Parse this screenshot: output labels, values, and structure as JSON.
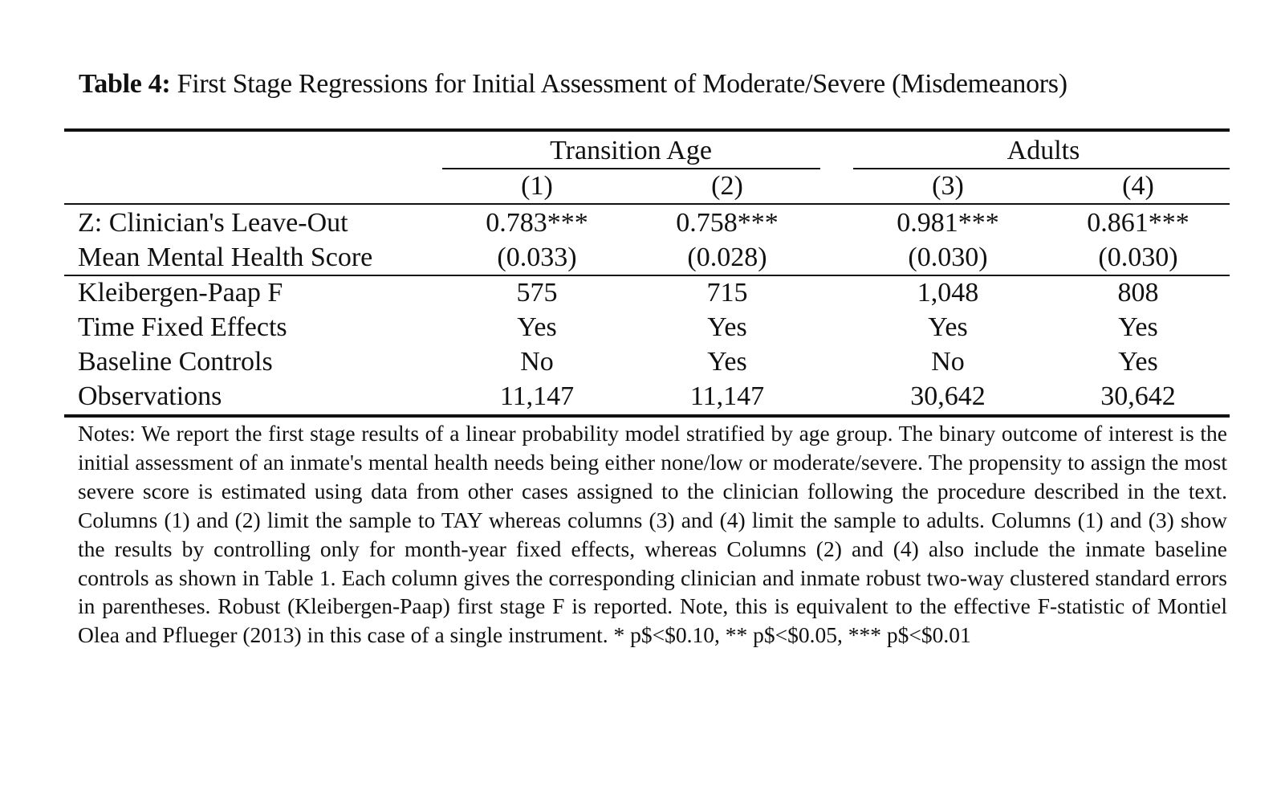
{
  "table": {
    "label": "Table 4:",
    "title": "First Stage Regressions for Initial Assessment of Moderate/Severe (Misdemeanors)",
    "groups": [
      {
        "label": "Transition Age"
      },
      {
        "label": "Adults"
      }
    ],
    "columns": [
      "(1)",
      "(2)",
      "(3)",
      "(4)"
    ],
    "rows": [
      {
        "label": "Z: Clinician's Leave-Out",
        "values": [
          "0.783***",
          "0.758***",
          "0.981***",
          "0.861***"
        ]
      },
      {
        "label": "Mean Mental Health Score",
        "values": [
          "(0.033)",
          "(0.028)",
          "(0.030)",
          "(0.030)"
        ]
      },
      {
        "label": "Kleibergen-Paap F",
        "values": [
          "575",
          "715",
          "1,048",
          "808"
        ]
      },
      {
        "label": "Time Fixed Effects",
        "values": [
          "Yes",
          "Yes",
          "Yes",
          "Yes"
        ]
      },
      {
        "label": "Baseline Controls",
        "values": [
          "No",
          "Yes",
          "No",
          "Yes"
        ]
      },
      {
        "label": "Observations",
        "values": [
          "11,147",
          "11,147",
          "30,642",
          "30,642"
        ]
      }
    ],
    "notes": "Notes: We report the first stage results of a linear probability model stratified by age group. The binary outcome of interest is the initial assessment of an inmate's mental health needs being either none/low or moderate/severe. The propensity to assign the most severe score is estimated using data from other cases assigned to the clinician following the procedure described in the text. Columns (1) and (2) limit the sample to TAY whereas columns (3) and (4) limit the sample to adults. Columns (1) and (3) show the results by controlling only for month-year fixed effects, whereas Columns (2) and (4) also include the inmate baseline controls as shown in Table 1. Each column gives the corresponding clinician and inmate robust two-way clustered standard errors in parentheses. Robust (Kleibergen-Paap) first stage F is reported. Note, this is equivalent to the effective F-statistic of Montiel Olea and Pflueger (2013) in this case of a single instrument. * p$<$0.10, ** p$<$0.05, *** p$<$0.01"
  }
}
